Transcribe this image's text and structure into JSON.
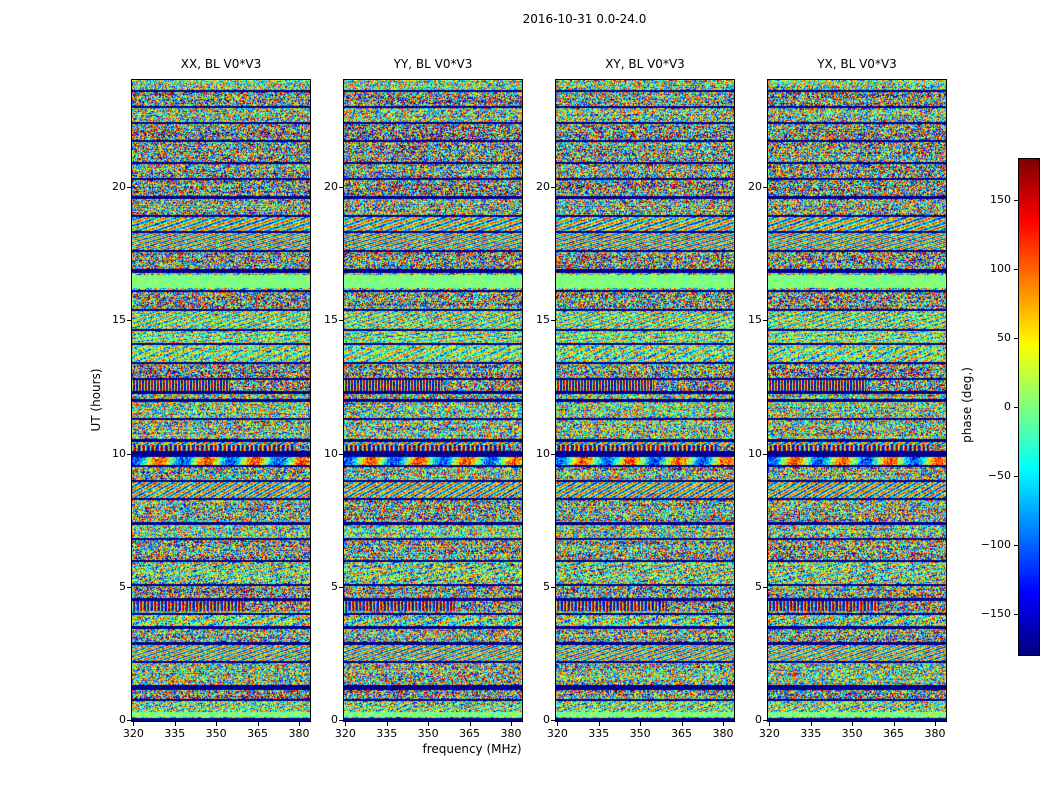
{
  "chart_data": {
    "type": "heatmap",
    "title": "2016-10-31 0.0-24.0",
    "xlabel": "frequency (MHz)",
    "ylabel": "UT (hours)",
    "panels": [
      {
        "title": "XX, BL V0*V3",
        "seed": 101
      },
      {
        "title": "YY, BL V0*V3",
        "seed": 202
      },
      {
        "title": "XY, BL V0*V3",
        "seed": 303
      },
      {
        "title": "YX, BL V0*V3",
        "seed": 404
      }
    ],
    "x_ticks": [
      320,
      335,
      350,
      365,
      380
    ],
    "y_ticks": [
      0,
      5,
      10,
      15,
      20
    ],
    "x_range": [
      319.5,
      384.0
    ],
    "y_range": [
      0,
      24
    ],
    "colorbar": {
      "label": "phase (deg.)",
      "ticks": [
        150,
        100,
        50,
        0,
        -50,
        -100,
        -150
      ],
      "range": [
        -180,
        180
      ],
      "colormap": "jet"
    },
    "value_unit": "deg",
    "pattern": "interferometric visibility phase noise vs frequency and time, with horizontal scan banding shared across all four polarisation panels",
    "structure_seed": 7,
    "features": {
      "flagged_rows": [
        [
          0.05,
          0.1
        ],
        [
          0.8,
          0.08
        ],
        [
          1.25,
          0.16
        ],
        [
          2.2,
          0.08
        ],
        [
          2.9,
          0.08
        ],
        [
          3.5,
          0.08
        ],
        [
          4.0,
          0.08
        ],
        [
          4.55,
          0.08
        ],
        [
          5.1,
          0.08
        ],
        [
          6.0,
          0.08
        ],
        [
          6.8,
          0.08
        ],
        [
          7.4,
          0.12
        ],
        [
          8.3,
          0.08
        ],
        [
          9.0,
          0.08
        ],
        [
          9.55,
          0.08
        ],
        [
          10.0,
          0.22
        ],
        [
          10.5,
          0.08
        ],
        [
          11.3,
          0.08
        ],
        [
          12.0,
          0.08
        ],
        [
          12.3,
          0.08
        ],
        [
          12.8,
          0.08
        ],
        [
          13.4,
          0.08
        ],
        [
          14.1,
          0.08
        ],
        [
          14.65,
          0.08
        ],
        [
          15.4,
          0.08
        ],
        [
          16.1,
          0.08
        ],
        [
          16.85,
          0.12
        ],
        [
          17.6,
          0.08
        ],
        [
          18.3,
          0.08
        ],
        [
          18.9,
          0.08
        ],
        [
          19.6,
          0.08
        ],
        [
          20.3,
          0.08
        ],
        [
          20.9,
          0.08
        ],
        [
          21.7,
          0.08
        ],
        [
          22.4,
          0.08
        ],
        [
          23.0,
          0.08
        ],
        [
          23.6,
          0.08
        ]
      ],
      "calm_bands": [
        {
          "t": 16.45,
          "w": 0.5,
          "spread": 18
        },
        {
          "t": 0.25,
          "w": 0.2,
          "spread": 25
        }
      ],
      "fringe_bands": [
        {
          "t": 4.3,
          "w": 0.35,
          "period": 7,
          "extent": 0.62
        },
        {
          "t": 12.55,
          "w": 0.4,
          "period": 6,
          "extent": 0.55
        },
        {
          "t": 10.2,
          "w": 0.25,
          "period": 9,
          "extent": 0.9
        }
      ]
    }
  }
}
